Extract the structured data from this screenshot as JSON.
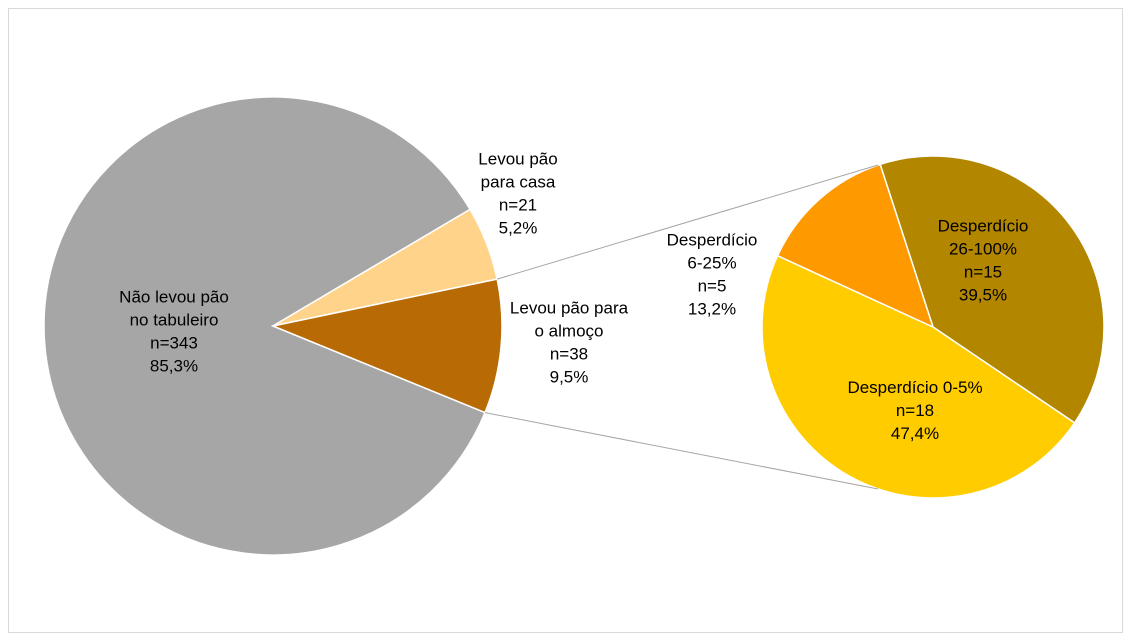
{
  "chart_data": {
    "type": "pie",
    "subtype": "pie-of-pie",
    "main_pie": {
      "slices": [
        {
          "label_lines": [
            "Não levou pão",
            "no tabuleiro",
            "n=343",
            "85,3%"
          ],
          "n": 343,
          "percent": 85.3,
          "color": "#a6a6a6"
        },
        {
          "label_lines": [
            "Levou pão",
            "para casa",
            "n=21",
            "5,2%"
          ],
          "n": 21,
          "percent": 5.2,
          "color": "#ffd38a"
        },
        {
          "label_lines": [
            "Levou pão para",
            "o almoço",
            "n=38",
            "9,5%"
          ],
          "n": 38,
          "percent": 9.5,
          "color": "#b86b05"
        }
      ]
    },
    "secondary_pie": {
      "source_slice": "Levou pão para o almoço",
      "slices": [
        {
          "label_lines": [
            "Desperdício",
            "26-100%",
            "n=15",
            "39,5%"
          ],
          "n": 15,
          "percent": 39.5,
          "color": "#b38600"
        },
        {
          "label_lines": [
            "Desperdício 0-5%",
            "n=18",
            "47,4%"
          ],
          "n": 18,
          "percent": 47.4,
          "color": "#ffcc00"
        },
        {
          "label_lines": [
            "Desperdício",
            "6-25%",
            "n=5",
            "13,2%"
          ],
          "n": 5,
          "percent": 13.2,
          "color": "#ff9900"
        }
      ]
    },
    "legend": "none"
  }
}
